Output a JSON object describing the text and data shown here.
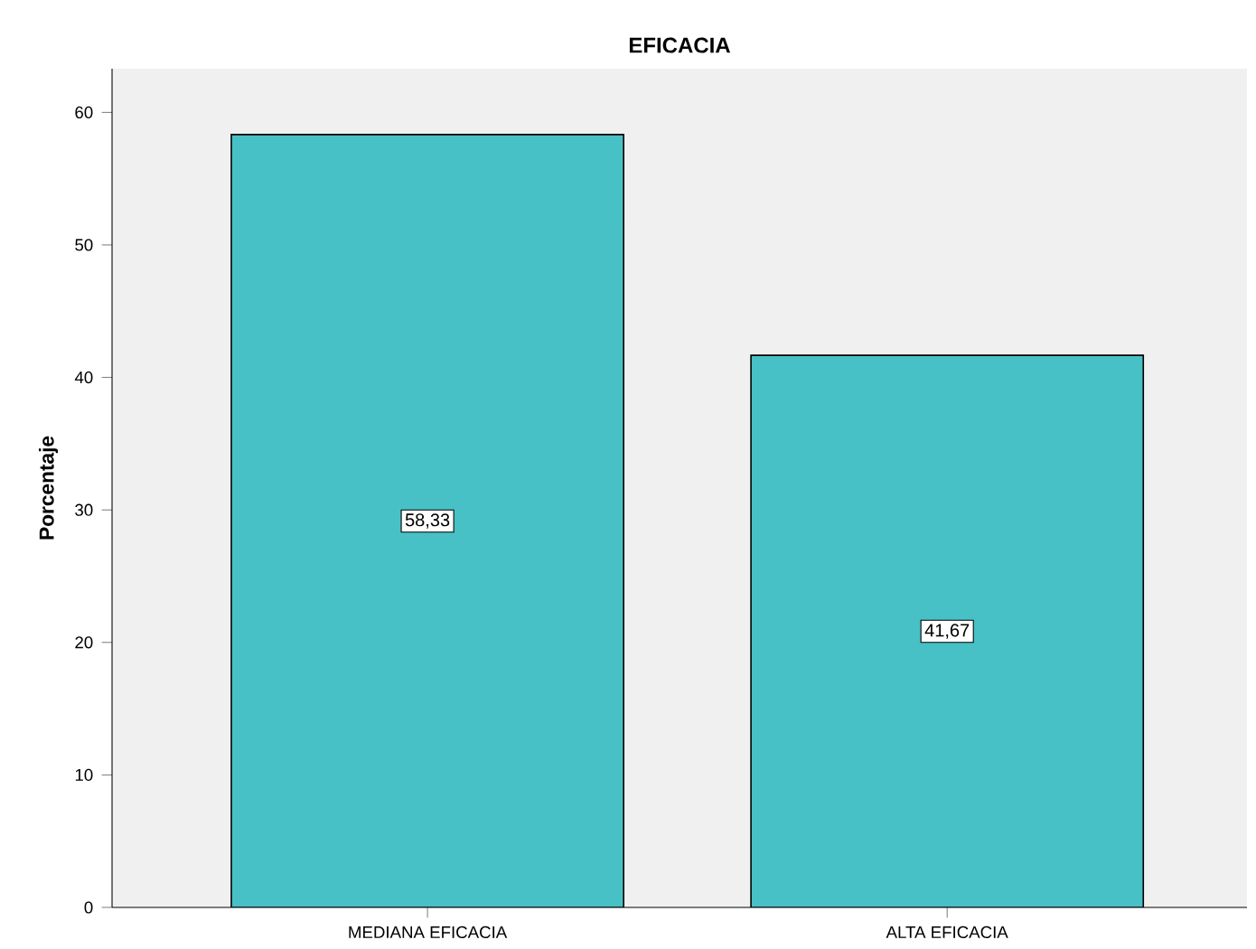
{
  "chart_data": {
    "type": "bar",
    "title": "EFICACIA",
    "ylabel": "Porcentaje",
    "categories": [
      "MEDIANA EFICACIA",
      "ALTA EFICACIA"
    ],
    "values": [
      58.33,
      41.67
    ],
    "value_labels": [
      "58,33",
      "41,67"
    ],
    "color": "#47c1c6",
    "ylim": [
      0,
      63.3
    ],
    "yticks": [
      0,
      10,
      20,
      30,
      40,
      50,
      60
    ],
    "grid": false
  }
}
